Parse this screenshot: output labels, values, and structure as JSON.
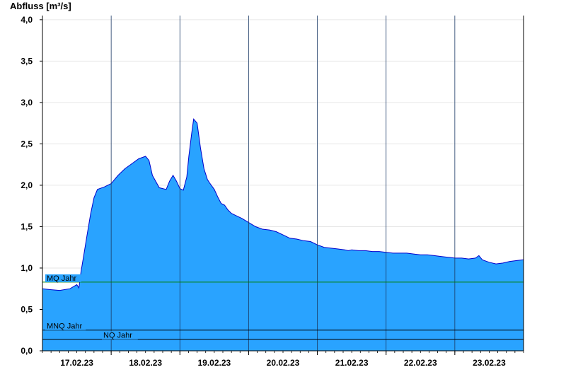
{
  "chart_data": {
    "type": "area",
    "title": "",
    "ylabel": "Abfluss [m³/s]",
    "xlabel": "",
    "ylim": [
      0,
      4.05
    ],
    "y_ticks": [
      "0,0",
      "0,5",
      "1,0",
      "1,5",
      "2,0",
      "2,5",
      "3,0",
      "3,5",
      "4,0"
    ],
    "y_tick_values": [
      0,
      0.5,
      1.0,
      1.5,
      2.0,
      2.5,
      3.0,
      3.5,
      4.0
    ],
    "x_range_days": [
      16.5,
      23.5
    ],
    "x_unit": "day of February 2023",
    "date_labels": [
      "17.02.23",
      "18.02.23",
      "19.02.23",
      "20.02.23",
      "21.02.23",
      "22.02.23",
      "23.02.23"
    ],
    "date_label_days": [
      17,
      18,
      19,
      20,
      21,
      22,
      23
    ],
    "day_boundaries": [
      17.5,
      18.5,
      19.5,
      20.5,
      21.5,
      22.5
    ],
    "grid": true,
    "series": [
      {
        "name": "",
        "color": "#29a3ff",
        "line_color": "#0000cc",
        "x": [
          16.5,
          16.6,
          16.75,
          16.9,
          17.0,
          17.03,
          17.06,
          17.1,
          17.15,
          17.2,
          17.25,
          17.3,
          17.4,
          17.5,
          17.6,
          17.7,
          17.8,
          17.9,
          18.0,
          18.05,
          18.1,
          18.2,
          18.3,
          18.35,
          18.4,
          18.45,
          18.5,
          18.55,
          18.6,
          18.63,
          18.67,
          18.7,
          18.75,
          18.8,
          18.85,
          18.9,
          18.93,
          19.0,
          19.05,
          19.1,
          19.15,
          19.2,
          19.25,
          19.3,
          19.35,
          19.4,
          19.5,
          19.6,
          19.7,
          19.8,
          19.9,
          20.0,
          20.1,
          20.2,
          20.3,
          20.4,
          20.5,
          20.6,
          20.7,
          20.8,
          20.9,
          20.95,
          21.0,
          21.1,
          21.2,
          21.3,
          21.4,
          21.5,
          21.6,
          21.7,
          21.8,
          21.9,
          22.0,
          22.1,
          22.2,
          22.3,
          22.4,
          22.5,
          22.6,
          22.7,
          22.8,
          22.85,
          22.9,
          23.0,
          23.1,
          23.2,
          23.3,
          23.4,
          23.5
        ],
        "values": [
          0.75,
          0.74,
          0.73,
          0.75,
          0.8,
          0.76,
          0.95,
          1.15,
          1.4,
          1.65,
          1.85,
          1.95,
          1.98,
          2.02,
          2.12,
          2.2,
          2.26,
          2.32,
          2.35,
          2.3,
          2.12,
          1.97,
          1.95,
          2.05,
          2.12,
          2.05,
          1.96,
          1.94,
          2.1,
          2.35,
          2.62,
          2.8,
          2.75,
          2.45,
          2.2,
          2.07,
          2.03,
          1.95,
          1.86,
          1.78,
          1.76,
          1.7,
          1.66,
          1.64,
          1.62,
          1.6,
          1.55,
          1.5,
          1.47,
          1.46,
          1.44,
          1.4,
          1.36,
          1.35,
          1.33,
          1.32,
          1.28,
          1.25,
          1.24,
          1.23,
          1.22,
          1.21,
          1.22,
          1.21,
          1.21,
          1.2,
          1.2,
          1.19,
          1.18,
          1.18,
          1.18,
          1.17,
          1.16,
          1.16,
          1.15,
          1.14,
          1.13,
          1.12,
          1.12,
          1.11,
          1.12,
          1.15,
          1.1,
          1.07,
          1.05,
          1.06,
          1.08,
          1.09,
          1.1
        ]
      }
    ],
    "reference_lines": [
      {
        "label": "MQ Jahr",
        "value": 0.83,
        "color": "#008000"
      },
      {
        "label": "MNQ Jahr",
        "value": 0.25,
        "color": "#000000"
      },
      {
        "label": "NQ Jahr",
        "value": 0.14,
        "color": "#000000"
      }
    ]
  }
}
